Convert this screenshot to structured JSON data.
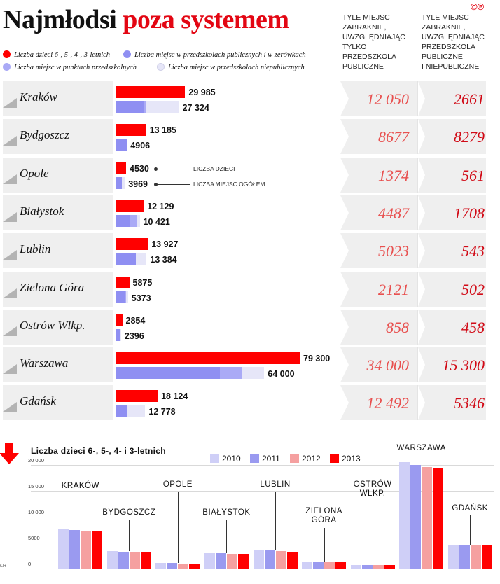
{
  "header": {
    "title_part1": "Najmłodsi",
    "title_part2": "poza systemem",
    "logo": "©℗",
    "col1_lines": [
      "TYLE MIEJSC",
      "ZABRAKNIE,",
      "UWZGLĘDNIAJĄC",
      "TYLKO",
      "PRZEDSZKOLA",
      "PUBLICZNE"
    ],
    "col2_lines": [
      "TYLE MIEJSC",
      "ZABRAKNIE,",
      "UWZGLĘDNIAJĄC",
      "PRZEDSZKOLA",
      "PUBLICZNE",
      "I NIEPUBLICZNE"
    ]
  },
  "legend": [
    {
      "label": "Liczba dzieci 6-, 5-, 4-, 3-letnich",
      "color": "#ff0000"
    },
    {
      "label": "Liczba miejsc w przedszkolach publicznych i w zerówkach",
      "color": "#8f8ff2"
    },
    {
      "label": "Liczba miejsc w punktach przedszkolnych",
      "color": "#aaaaf6"
    },
    {
      "label": "Liczba miejsc w przedszkolach niepublicznych",
      "color": "#e6e6f8"
    }
  ],
  "annotations": {
    "children": "LICZBA DZIECI",
    "places": "LICZBA MIEJSC OGÓŁEM"
  },
  "chart_data": [
    {
      "type": "bar",
      "orientation": "horizontal",
      "title": "Najmłodsi poza systemem",
      "series_colors": {
        "children": "#ff0000",
        "public": "#8f8ff2",
        "points": "#aaaaf6",
        "nonpublic": "#e6e6f8"
      },
      "rows": [
        {
          "city": "Kraków",
          "children": 29985,
          "children_label": "29 985",
          "places": 27324,
          "places_label": "27 324",
          "split": [
            0.45,
            0.02,
            0.53
          ],
          "shortage_public": "12 050",
          "shortage_all": "2661"
        },
        {
          "city": "Bydgoszcz",
          "children": 13185,
          "children_label": "13 185",
          "places": 4906,
          "places_label": "4906",
          "split": [
            1.0,
            0.0,
            0.0
          ],
          "shortage_public": "8677",
          "shortage_all": "8279"
        },
        {
          "city": "Opole",
          "children": 4530,
          "children_label": "4530",
          "places": 3969,
          "places_label": "3969",
          "split": [
            0.7,
            0.0,
            0.3
          ],
          "shortage_public": "1374",
          "shortage_all": "561"
        },
        {
          "city": "Białystok",
          "children": 12129,
          "children_label": "12 129",
          "places": 10421,
          "places_label": "10 421",
          "split": [
            0.6,
            0.3,
            0.1
          ],
          "shortage_public": "4487",
          "shortage_all": "1708"
        },
        {
          "city": "Lublin",
          "children": 13927,
          "children_label": "13 927",
          "places": 13384,
          "places_label": "13 384",
          "split": [
            0.65,
            0.0,
            0.35
          ],
          "shortage_public": "5023",
          "shortage_all": "543"
        },
        {
          "city": "Zielona Góra",
          "children": 5875,
          "children_label": "5875",
          "places": 5373,
          "places_label": "5373",
          "split": [
            0.7,
            0.15,
            0.15
          ],
          "shortage_public": "2121",
          "shortage_all": "502"
        },
        {
          "city": "Ostrów Wlkp.",
          "children": 2854,
          "children_label": "2854",
          "places": 2396,
          "places_label": "2396",
          "split": [
            0.85,
            0.0,
            0.15
          ],
          "shortage_public": "858",
          "shortage_all": "458"
        },
        {
          "city": "Warszawa",
          "children": 79300,
          "children_label": "79 300",
          "places": 64000,
          "places_label": "64 000",
          "split": [
            0.7,
            0.15,
            0.15
          ],
          "shortage_public": "34 000",
          "shortage_all": "15 300"
        },
        {
          "city": "Gdańsk",
          "children": 18124,
          "children_label": "18 124",
          "places": 12778,
          "places_label": "12 778",
          "split": [
            0.38,
            0.0,
            0.62
          ],
          "shortage_public": "12 492",
          "shortage_all": "5346"
        }
      ]
    },
    {
      "type": "bar",
      "title": "Liczba dzieci 6-, 5-, 4- i 3-letnich",
      "ylim": [
        0,
        20000
      ],
      "yticks": [
        "0",
        "5000",
        "10 000",
        "15 000",
        "20 000"
      ],
      "categories": [
        "KRAKÓW",
        "BYDGOSZCZ",
        "OPOLE",
        "BIAŁYSTOK",
        "LUBLIN",
        "ZIELONA GÓRA",
        "OSTRÓW WLKP.",
        "WARSZAWA",
        "GDAŃSK"
      ],
      "series": [
        {
          "name": "2010",
          "color": "#cfcff7",
          "values": [
            7600,
            3400,
            1100,
            3000,
            3500,
            1300,
            700,
            20500,
            4500
          ]
        },
        {
          "name": "2011",
          "color": "#9a9af0",
          "values": [
            7400,
            3200,
            1050,
            3000,
            3600,
            1350,
            700,
            20000,
            4400
          ]
        },
        {
          "name": "2012",
          "color": "#f5a0a0",
          "values": [
            7300,
            3150,
            1000,
            2900,
            3400,
            1300,
            700,
            19600,
            4400
          ]
        },
        {
          "name": "2013",
          "color": "#ff0000",
          "values": [
            7200,
            3100,
            1000,
            2850,
            3300,
            1300,
            700,
            19300,
            4400
          ]
        }
      ]
    }
  ]
}
